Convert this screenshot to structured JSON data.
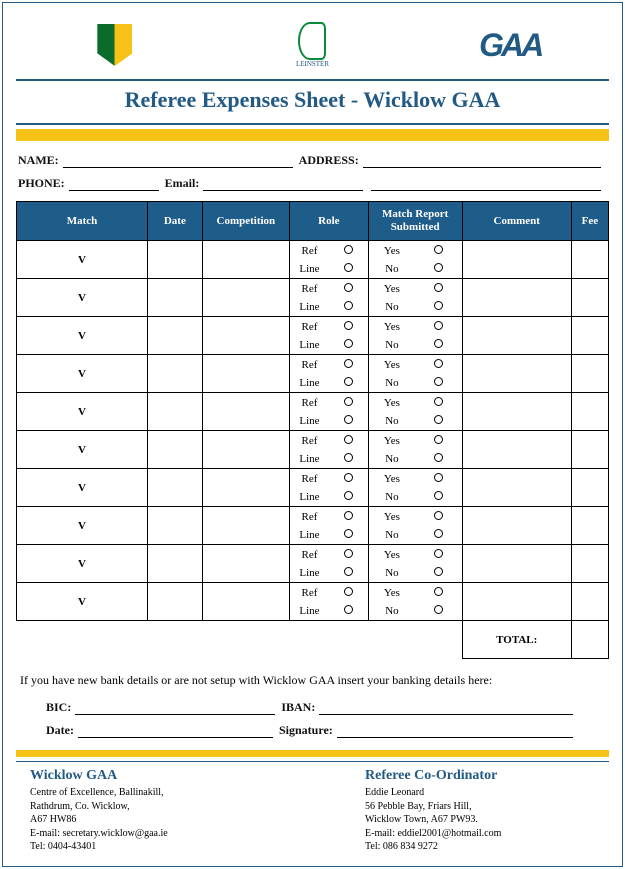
{
  "title": "Referee Expenses Sheet  - Wicklow GAA",
  "logos": {
    "left_alt": "Wicklow Crest",
    "mid_label": "LEINSTER",
    "right_text": "GAA"
  },
  "fields": {
    "name_label": "NAME:",
    "address_label": "ADDRESS:",
    "phone_label": "PHONE:",
    "email_label": "Email:",
    "bic_label": "BIC:",
    "iban_label": "IBAN:",
    "date_label": "Date:",
    "signature_label": "Signature:"
  },
  "table": {
    "headers": {
      "match": "Match",
      "date": "Date",
      "competition": "Competition",
      "role": "Role",
      "report": "Match Report Submitted",
      "comment": "Comment",
      "fee": "Fee"
    },
    "role_options": {
      "a": "Ref",
      "b": "Line"
    },
    "report_options": {
      "a": "Yes",
      "b": "No"
    },
    "row_match_text": "V",
    "row_count": 10,
    "total_label": "TOTAL:"
  },
  "banknote": "If you have new bank details or are not setup with Wicklow GAA insert your banking details here:",
  "footer": {
    "left": {
      "title": "Wicklow GAA",
      "line1": "Centre of Excellence, Ballinakill,",
      "line2": "Rathdrum, Co. Wicklow,",
      "line3": "A67 HW86",
      "email": "E-mail: secretary.wicklow@gaa.ie",
      "tel": "Tel: 0404-43401"
    },
    "right": {
      "title": "Referee Co-Ordinator",
      "line1": "Eddie Leonard",
      "line2": "56 Pebble Bay, Friars Hill,",
      "line3": "Wicklow Town, A67 PW93.",
      "email": "E-mail: eddiel2001@hotmail.com",
      "tel": "Tel: 086 834 9272"
    }
  },
  "colors": {
    "primary": "#225a84",
    "accent": "#f6c217"
  }
}
